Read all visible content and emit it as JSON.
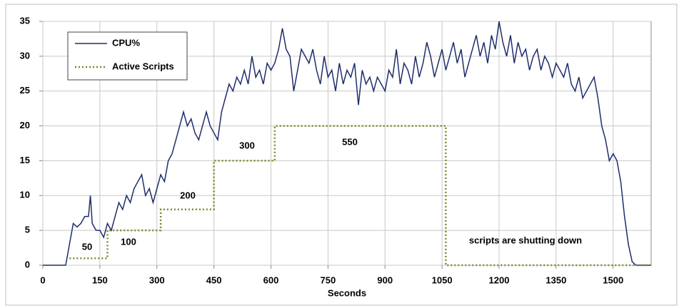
{
  "chart_data": {
    "type": "line",
    "x_label": "Seconds",
    "xlim": [
      0,
      1600
    ],
    "xticks": [
      0,
      150,
      300,
      450,
      600,
      750,
      900,
      1050,
      1200,
      1350,
      1500
    ],
    "ylim": [
      0,
      35
    ],
    "yticks": [
      0,
      5,
      10,
      15,
      20,
      25,
      30,
      35
    ],
    "grid": true,
    "legend": "upper left",
    "series": [
      {
        "name": "CPU%",
        "color": "#1f2d6b",
        "style": "solid",
        "x": [
          0,
          10,
          20,
          30,
          40,
          50,
          60,
          70,
          80,
          90,
          100,
          110,
          120,
          125,
          130,
          140,
          150,
          160,
          170,
          180,
          190,
          200,
          210,
          220,
          230,
          240,
          250,
          260,
          270,
          280,
          290,
          300,
          310,
          320,
          330,
          340,
          350,
          360,
          370,
          380,
          390,
          400,
          410,
          420,
          430,
          440,
          450,
          460,
          470,
          480,
          490,
          500,
          510,
          520,
          530,
          540,
          550,
          560,
          570,
          580,
          590,
          600,
          610,
          620,
          630,
          640,
          650,
          660,
          670,
          680,
          690,
          700,
          710,
          720,
          730,
          740,
          750,
          760,
          770,
          780,
          790,
          800,
          810,
          820,
          830,
          840,
          850,
          860,
          870,
          880,
          890,
          900,
          910,
          920,
          930,
          940,
          950,
          960,
          970,
          980,
          990,
          1000,
          1010,
          1020,
          1030,
          1040,
          1050,
          1060,
          1070,
          1080,
          1090,
          1100,
          1110,
          1120,
          1130,
          1140,
          1150,
          1160,
          1170,
          1180,
          1190,
          1200,
          1210,
          1220,
          1230,
          1240,
          1250,
          1260,
          1270,
          1280,
          1290,
          1300,
          1310,
          1320,
          1330,
          1340,
          1350,
          1360,
          1370,
          1380,
          1390,
          1400,
          1410,
          1420,
          1430,
          1440,
          1450,
          1460,
          1470,
          1480,
          1490,
          1500,
          1510,
          1520,
          1530,
          1540,
          1550,
          1560,
          1600
        ],
        "values": [
          0,
          0,
          0,
          0,
          0,
          0,
          0,
          3,
          6,
          5.5,
          6,
          7,
          7,
          10,
          6,
          5,
          5,
          4,
          6,
          5,
          7,
          9,
          8,
          10,
          9,
          11,
          12,
          13,
          10,
          11,
          9,
          11,
          13,
          12,
          15,
          16,
          18,
          20,
          22,
          20,
          21,
          19,
          18,
          20,
          22,
          20,
          19,
          18,
          22,
          24,
          26,
          25,
          27,
          26,
          28,
          26,
          30,
          27,
          28,
          26,
          29,
          28,
          29,
          31,
          34,
          31,
          30,
          25,
          28,
          31,
          30,
          29,
          31,
          28,
          26,
          30,
          27,
          28,
          25,
          29,
          26,
          28,
          27,
          29,
          23,
          28,
          26,
          27,
          25,
          27,
          26,
          25,
          28,
          27,
          31,
          26,
          29,
          28,
          26,
          30,
          27,
          29,
          32,
          30,
          27,
          29,
          31,
          28,
          30,
          32,
          29,
          31,
          27,
          29,
          31,
          33,
          30,
          32,
          29,
          33,
          31,
          35,
          32,
          30,
          33,
          29,
          32,
          30,
          31,
          28,
          30,
          31,
          28,
          30,
          29,
          27,
          29,
          28,
          27,
          29,
          26,
          25,
          27,
          24,
          25,
          26,
          27,
          24,
          20,
          18,
          15,
          16,
          15,
          12,
          7,
          3,
          0.5,
          0,
          0
        ]
      },
      {
        "name": "Active Scripts",
        "color": "#7a8a2a",
        "style": "dotted",
        "x": [
          70,
          170,
          170,
          310,
          310,
          450,
          450,
          610,
          610,
          1060,
          1060,
          1600
        ],
        "values": [
          1,
          1,
          5,
          5,
          8,
          8,
          15,
          15,
          20,
          20,
          0,
          0
        ]
      }
    ],
    "annotations": [
      "50",
      "100",
      "200",
      "300",
      "550",
      "scripts are shutting down"
    ]
  }
}
